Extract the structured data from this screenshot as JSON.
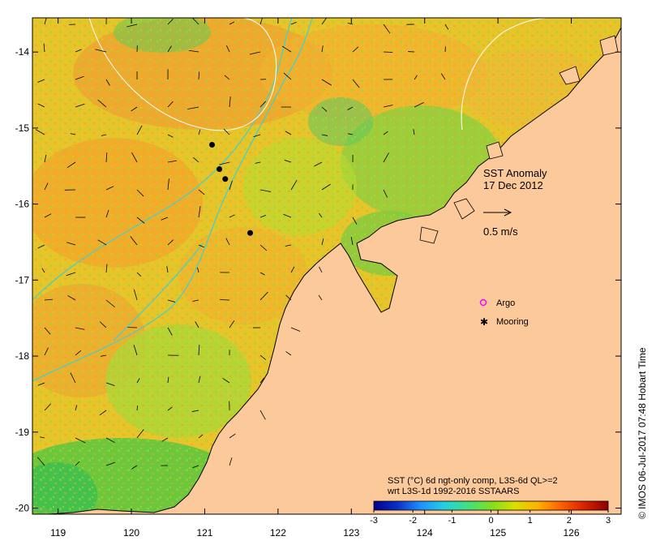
{
  "map": {
    "x_ticks": [
      "119",
      "120",
      "121",
      "122",
      "123",
      "124",
      "125",
      "126"
    ],
    "y_ticks": [
      "-14",
      "-15",
      "-16",
      "-17",
      "-18",
      "-19",
      "-20"
    ],
    "lon_range": [
      118.65,
      126.68
    ],
    "lat_range": [
      -20.08,
      -13.55
    ]
  },
  "annotation": {
    "title_line1": "SST Anomaly",
    "title_line2": "17 Dec 2012",
    "vector_scale": "0.5 m/s"
  },
  "legend": {
    "argo_label": "Argo",
    "mooring_label": "Mooring",
    "argo_color": "#ff00ff",
    "mooring_color": "#000000"
  },
  "colorbar": {
    "line1": "SST (°C) 6d ngt-only comp, L3S-6d QL>=2",
    "line2": "wrt L3S-1d 1992-2016 SSTAARS",
    "ticks": [
      "-3",
      "-2",
      "-1",
      "0",
      "1",
      "2",
      "3"
    ],
    "range": [
      -3,
      3
    ],
    "colors": [
      "#00008b",
      "#0a30c8",
      "#1e90ff",
      "#20d0e0",
      "#40e080",
      "#7ee020",
      "#d8e000",
      "#ffb000",
      "#ff6000",
      "#d82000",
      "#8b0000"
    ]
  },
  "moorings": [
    {
      "lon": 121.1,
      "lat": -15.22
    },
    {
      "lon": 121.2,
      "lat": -15.54
    },
    {
      "lon": 121.28,
      "lat": -15.67
    },
    {
      "lon": 121.62,
      "lat": -16.38
    }
  ],
  "credit": "© IMOS 06-Jul-2017 07:48 Hobart Time",
  "colors": {
    "land": "#fcc99a",
    "ocean_warm": "#f2c024",
    "ocean_green": "#8fd43a",
    "ocean_teal": "#30c090",
    "bathy_line": "#40d0d0"
  }
}
